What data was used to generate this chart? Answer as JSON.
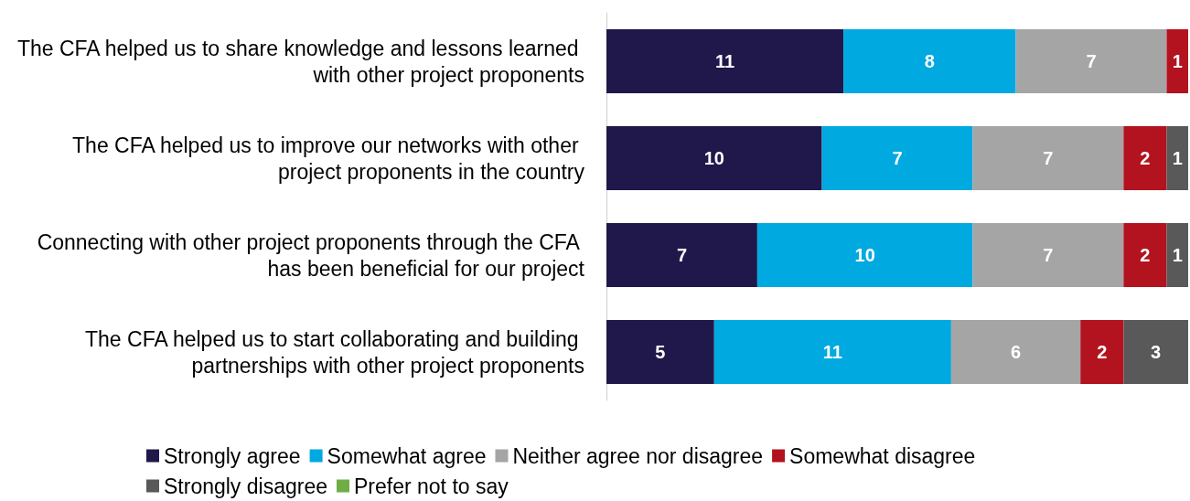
{
  "chart_data": {
    "type": "bar",
    "orientation": "horizontal",
    "stacked": true,
    "data_labels": true,
    "legend": "bottom",
    "categories": [
      "The CFA helped us to share knowledge and lessons learned with other project proponents",
      "The CFA helped us to improve our networks with other project proponents in the country",
      "Connecting with other project proponents through the CFA has been beneficial for our project",
      "The CFA helped us to start collaborating and building partnerships with other project proponents"
    ],
    "series": [
      {
        "name": "Strongly agree",
        "color": "#20184a",
        "values": [
          11,
          10,
          7,
          5
        ]
      },
      {
        "name": "Somewhat agree",
        "color": "#00a9e0",
        "values": [
          8,
          7,
          10,
          11
        ]
      },
      {
        "name": "Neither agree nor disagree",
        "color": "#a5a5a5",
        "values": [
          7,
          7,
          7,
          6
        ]
      },
      {
        "name": "Somewhat disagree",
        "color": "#b3121f",
        "values": [
          1,
          2,
          2,
          2
        ]
      },
      {
        "name": "Strongly disagree",
        "color": "#595959",
        "values": [
          null,
          1,
          1,
          3
        ]
      },
      {
        "name": "Prefer not to say",
        "color": "#70ad47",
        "values": [
          null,
          null,
          null,
          null
        ]
      }
    ]
  }
}
